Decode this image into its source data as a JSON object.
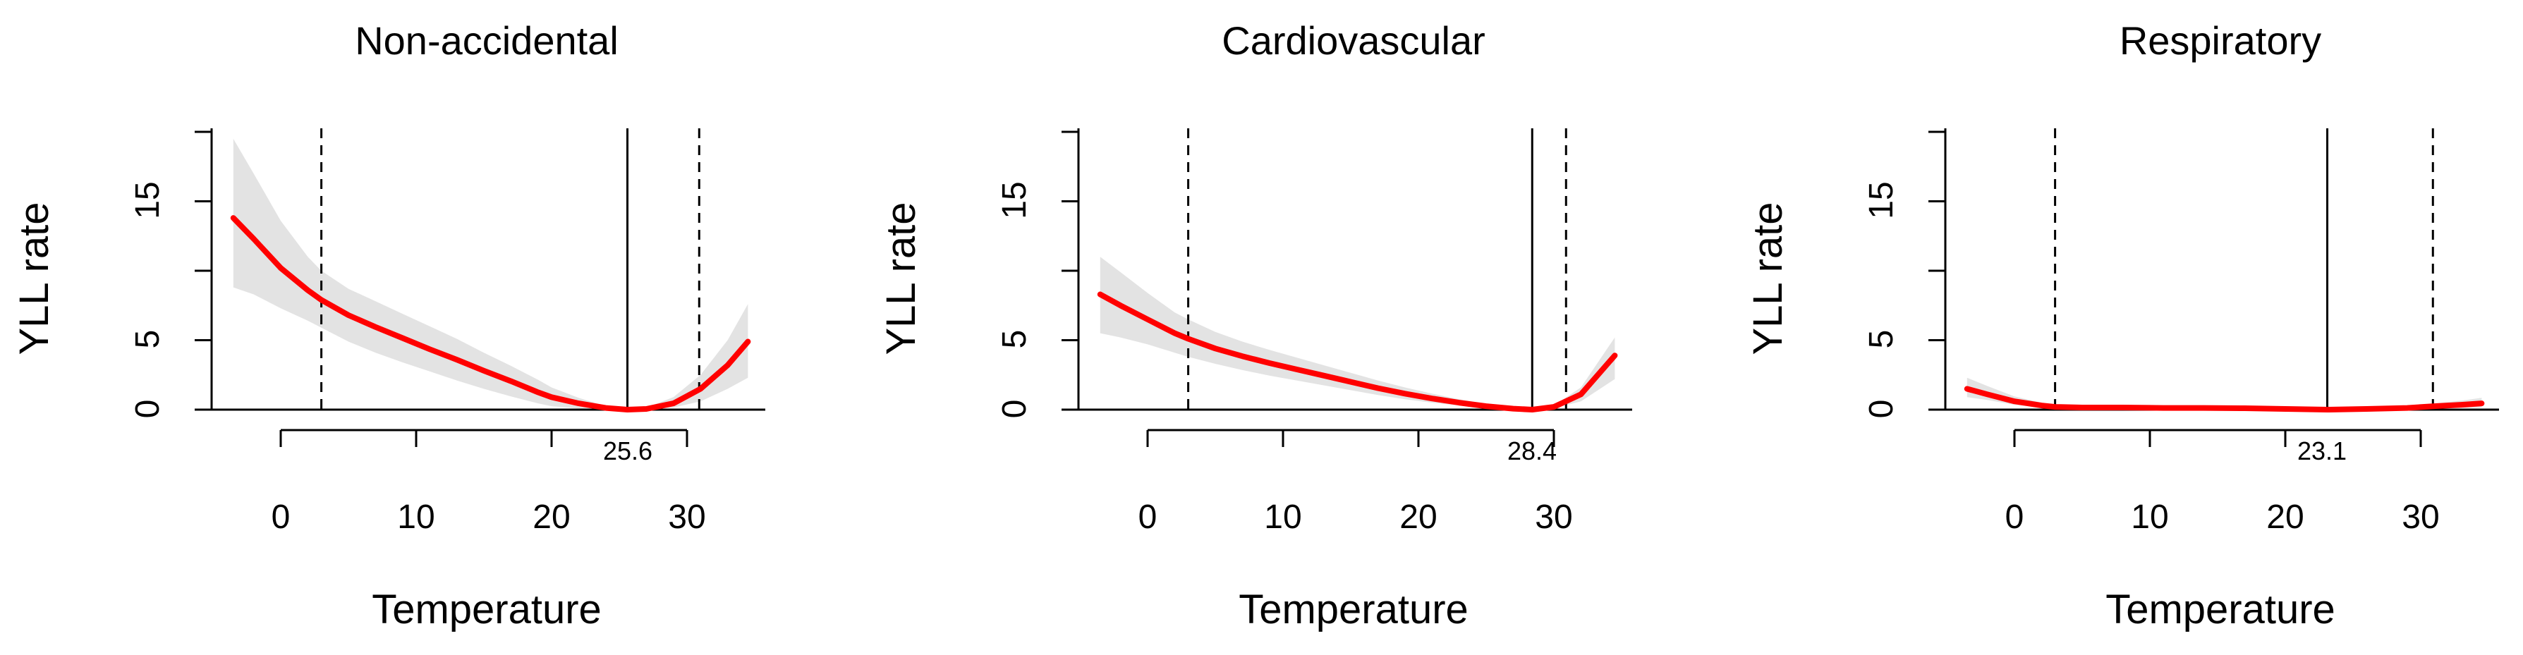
{
  "chart_data": [
    {
      "type": "line",
      "title": "Non-accidental",
      "xlabel": "Temperature",
      "ylabel": "YLL rate",
      "xlim": [
        -4.5,
        36
      ],
      "ylim": [
        -1,
        21
      ],
      "x_ticks": [
        0,
        10,
        20,
        30
      ],
      "x_tick_labels": [
        "0",
        "10",
        "20",
        "30"
      ],
      "y_ticks": [
        0,
        5,
        15
      ],
      "y_tick_labels": [
        "0",
        "5",
        "15"
      ],
      "reference_line_value": 0,
      "optimum_temperature": 25.6,
      "optimum_label": "25.6",
      "percentile_lines": [
        3,
        30.9
      ],
      "series": [
        {
          "name": "YLL rate",
          "color": "#ff0000",
          "x": [
            -3.5,
            -2,
            0,
            2,
            3,
            5,
            7,
            9,
            11,
            13,
            15,
            17,
            19,
            20,
            22,
            24,
            25.6,
            27,
            29,
            31,
            33,
            34.5
          ],
          "values": [
            13.8,
            12.3,
            10.2,
            8.6,
            7.9,
            6.8,
            5.95,
            5.15,
            4.35,
            3.6,
            2.8,
            2.05,
            1.25,
            0.9,
            0.45,
            0.12,
            0.0,
            0.05,
            0.45,
            1.5,
            3.2,
            4.9
          ],
          "ci_lower": [
            8.8,
            8.3,
            7.3,
            6.4,
            5.9,
            4.9,
            4.1,
            3.4,
            2.75,
            2.1,
            1.5,
            0.95,
            0.45,
            0.25,
            0.08,
            0.02,
            0.0,
            0.01,
            0.15,
            0.6,
            1.5,
            2.3
          ],
          "ci_upper": [
            19.5,
            17.0,
            13.6,
            11.0,
            10.0,
            8.7,
            7.8,
            6.9,
            6.0,
            5.1,
            4.1,
            3.15,
            2.15,
            1.6,
            0.85,
            0.25,
            0.0,
            0.15,
            0.9,
            2.5,
            5.0,
            7.6
          ]
        }
      ]
    },
    {
      "type": "line",
      "title": "Cardiovascular",
      "xlabel": "Temperature",
      "ylabel": "YLL rate",
      "xlim": [
        -4.5,
        36
      ],
      "ylim": [
        -1,
        21
      ],
      "x_ticks": [
        0,
        10,
        20,
        30
      ],
      "x_tick_labels": [
        "0",
        "10",
        "20",
        "30"
      ],
      "y_ticks": [
        0,
        5,
        15
      ],
      "y_tick_labels": [
        "0",
        "5",
        "15"
      ],
      "reference_line_value": 0,
      "optimum_temperature": 28.4,
      "optimum_label": "28.4",
      "percentile_lines": [
        3,
        30.9
      ],
      "series": [
        {
          "name": "YLL rate",
          "color": "#ff0000",
          "x": [
            -3.5,
            -2,
            0,
            2,
            3,
            5,
            7,
            9,
            11,
            13,
            15,
            17,
            19,
            21,
            23,
            25,
            27,
            28.4,
            30,
            32,
            34.5
          ],
          "values": [
            8.3,
            7.5,
            6.5,
            5.5,
            5.1,
            4.4,
            3.85,
            3.35,
            2.9,
            2.45,
            2.0,
            1.55,
            1.15,
            0.8,
            0.5,
            0.25,
            0.07,
            0.0,
            0.2,
            1.1,
            3.9
          ],
          "ci_lower": [
            5.5,
            5.2,
            4.7,
            4.1,
            3.8,
            3.3,
            2.85,
            2.45,
            2.1,
            1.75,
            1.4,
            1.05,
            0.75,
            0.5,
            0.3,
            0.12,
            0.03,
            0.0,
            0.1,
            0.6,
            2.2
          ],
          "ci_upper": [
            11.0,
            9.9,
            8.4,
            7.0,
            6.5,
            5.6,
            4.9,
            4.3,
            3.75,
            3.2,
            2.65,
            2.1,
            1.6,
            1.15,
            0.75,
            0.4,
            0.12,
            0.0,
            0.3,
            1.6,
            5.2
          ]
        }
      ]
    },
    {
      "type": "line",
      "title": "Respiratory",
      "xlabel": "Temperature",
      "ylabel": "YLL rate",
      "xlim": [
        -4.5,
        36
      ],
      "ylim": [
        -1,
        21
      ],
      "x_ticks": [
        0,
        10,
        20,
        30
      ],
      "x_tick_labels": [
        "0",
        "10",
        "20",
        "30"
      ],
      "y_ticks": [
        0,
        5,
        15
      ],
      "y_tick_labels": [
        "0",
        "5",
        "15"
      ],
      "reference_line_value": 0,
      "optimum_temperature": 23.1,
      "optimum_label": "23.1",
      "percentile_lines": [
        3,
        30.9
      ],
      "series": [
        {
          "name": "YLL rate",
          "color": "#ff0000",
          "x": [
            -3.5,
            -2,
            0,
            2,
            3,
            5,
            8,
            11,
            14,
            17,
            20,
            23.1,
            26,
            29,
            31,
            33,
            34.5
          ],
          "values": [
            1.5,
            1.1,
            0.6,
            0.3,
            0.2,
            0.15,
            0.15,
            0.12,
            0.12,
            0.1,
            0.05,
            0.0,
            0.05,
            0.12,
            0.25,
            0.35,
            0.45
          ],
          "ci_lower": [
            0.9,
            0.7,
            0.35,
            0.15,
            0.1,
            0.07,
            0.07,
            0.05,
            0.05,
            0.04,
            0.02,
            0.0,
            0.02,
            0.05,
            0.1,
            0.12,
            0.15
          ],
          "ci_upper": [
            2.3,
            1.7,
            0.95,
            0.5,
            0.35,
            0.25,
            0.25,
            0.22,
            0.22,
            0.18,
            0.1,
            0.0,
            0.1,
            0.22,
            0.45,
            0.65,
            0.85
          ]
        }
      ]
    }
  ]
}
